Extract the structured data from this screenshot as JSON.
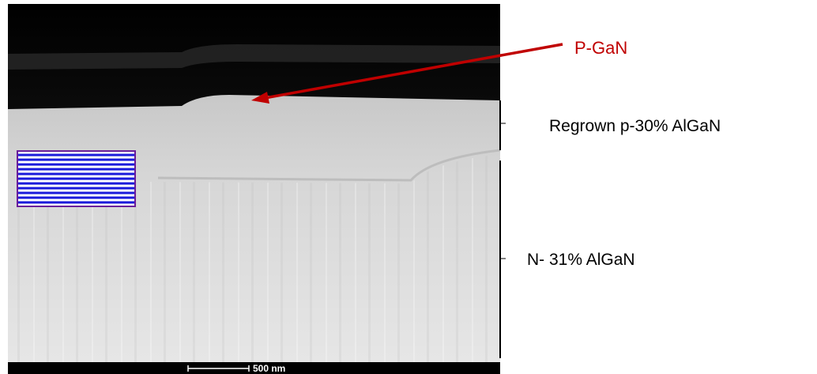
{
  "annotations": {
    "top_layer": "P-GaN",
    "middle_layer": "Regrown p-30% AlGaN",
    "bottom_layer": "N- 31% AlGaN"
  },
  "scale_bar": {
    "label": "500 nm"
  }
}
